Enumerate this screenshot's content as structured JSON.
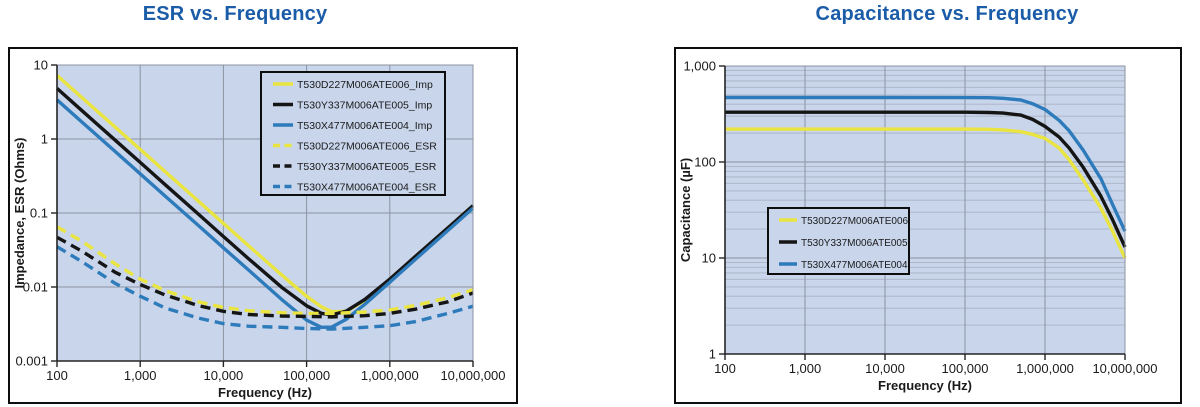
{
  "colors": {
    "title": "#1b5ca8",
    "text": "#1a1a1a",
    "plot_bg": "#c8d5eb",
    "grid_major": "#8c93a1",
    "grid_minor": "#aab3c4",
    "axis": "#252525",
    "panel_border": "#0d0d0d",
    "yellow": "#e9e440",
    "black": "#151515",
    "blue": "#2e7bbc"
  },
  "chart_data": [
    {
      "type": "line",
      "title": "ESR vs. Frequency",
      "xlabel": "Frequency (Hz)",
      "ylabel": "Impedance, ESR (Ohms)",
      "xscale": "log",
      "yscale": "log",
      "xlim": [
        100,
        10000000
      ],
      "ylim": [
        0.001,
        10
      ],
      "x_ticks": [
        100,
        1000,
        10000,
        100000,
        1000000,
        10000000
      ],
      "x_tick_labels": [
        "100",
        "1,000",
        "10,000",
        "100,000",
        "1,000,000",
        "10,000,000"
      ],
      "y_ticks": [
        10,
        1,
        0.1,
        0.01,
        0.001
      ],
      "y_tick_labels": [
        "10",
        "1",
        "0.1",
        "0.01",
        "0.001"
      ],
      "minor_horizontal_gridlines": false,
      "legend_position": "top-right",
      "series": [
        {
          "name": "T530D227M006ATE006_Imp",
          "color": "#e9e440",
          "style": "solid",
          "points": [
            [
              100,
              7.23
            ],
            [
              200,
              3.62
            ],
            [
              500,
              1.447
            ],
            [
              1000,
              0.723
            ],
            [
              2000,
              0.362
            ],
            [
              5000,
              0.1447
            ],
            [
              10000,
              0.0723
            ],
            [
              20000,
              0.0363
            ],
            [
              50000,
              0.01455
            ],
            [
              100000,
              0.00748
            ],
            [
              150000,
              0.0054
            ],
            [
              200000,
              0.00463
            ],
            [
              300000,
              0.0047
            ],
            [
              500000,
              0.0066
            ],
            [
              1000000,
              0.01267
            ],
            [
              2000000,
              0.02518
            ],
            [
              5000000,
              0.06285
            ],
            [
              10000000,
              0.1257
            ]
          ]
        },
        {
          "name": "T530Y337M006ATE005_Imp",
          "color": "#151515",
          "style": "solid",
          "points": [
            [
              100,
              4.823
            ],
            [
              200,
              2.412
            ],
            [
              500,
              0.9646
            ],
            [
              1000,
              0.4823
            ],
            [
              2000,
              0.2412
            ],
            [
              5000,
              0.0965
            ],
            [
              10000,
              0.0482
            ],
            [
              20000,
              0.0242
            ],
            [
              50000,
              0.00995
            ],
            [
              100000,
              0.00557
            ],
            [
              150000,
              0.00441
            ],
            [
              200000,
              0.0042
            ],
            [
              300000,
              0.00472
            ],
            [
              500000,
              0.00678
            ],
            [
              1000000,
              0.0128
            ],
            [
              2000000,
              0.02548
            ],
            [
              5000000,
              0.063
            ],
            [
              10000000,
              0.1257
            ]
          ]
        },
        {
          "name": "T530X477M006ATE004_Imp",
          "color": "#2e7bbc",
          "style": "solid",
          "points": [
            [
              100,
              3.386
            ],
            [
              200,
              1.693
            ],
            [
              500,
              0.6773
            ],
            [
              1000,
              0.3386
            ],
            [
              2000,
              0.1693
            ],
            [
              5000,
              0.0677
            ],
            [
              10000,
              0.0339
            ],
            [
              20000,
              0.017
            ],
            [
              50000,
              0.00679
            ],
            [
              100000,
              0.00357
            ],
            [
              150000,
              0.00285
            ],
            [
              200000,
              0.00287
            ],
            [
              300000,
              0.00367
            ],
            [
              500000,
              0.00584
            ],
            [
              1000000,
              0.01162
            ],
            [
              2000000,
              0.02327
            ],
            [
              5000000,
              0.0582
            ],
            [
              10000000,
              0.1163
            ]
          ]
        },
        {
          "name": "T530D227M006ATE006_ESR",
          "color": "#e9e440",
          "style": "dashed",
          "points": [
            [
              100,
              0.065
            ],
            [
              200,
              0.0415
            ],
            [
              500,
              0.0205
            ],
            [
              1000,
              0.0128
            ],
            [
              2000,
              0.0089
            ],
            [
              5000,
              0.0063
            ],
            [
              10000,
              0.0053
            ],
            [
              20000,
              0.00478
            ],
            [
              50000,
              0.0045
            ],
            [
              100000,
              0.0044
            ],
            [
              200000,
              0.0044
            ],
            [
              500000,
              0.0046
            ],
            [
              1000000,
              0.0049
            ],
            [
              2000000,
              0.0056
            ],
            [
              5000000,
              0.0072
            ],
            [
              10000000,
              0.0092
            ]
          ]
        },
        {
          "name": "T530Y337M006ATE005_ESR",
          "color": "#151515",
          "style": "dashed",
          "points": [
            [
              100,
              0.047
            ],
            [
              200,
              0.0305
            ],
            [
              500,
              0.0158
            ],
            [
              1000,
              0.0108
            ],
            [
              2000,
              0.0078
            ],
            [
              5000,
              0.0056
            ],
            [
              10000,
              0.0047
            ],
            [
              20000,
              0.00425
            ],
            [
              50000,
              0.00405
            ],
            [
              100000,
              0.004
            ],
            [
              200000,
              0.00395
            ],
            [
              500000,
              0.0041
            ],
            [
              1000000,
              0.0044
            ],
            [
              2000000,
              0.005
            ],
            [
              5000000,
              0.0063
            ],
            [
              10000000,
              0.0083
            ]
          ]
        },
        {
          "name": "T530X477M006ATE004_ESR",
          "color": "#2e7bbc",
          "style": "dashed",
          "points": [
            [
              100,
              0.035
            ],
            [
              200,
              0.022
            ],
            [
              500,
              0.0112
            ],
            [
              1000,
              0.0075
            ],
            [
              2000,
              0.0052
            ],
            [
              5000,
              0.0038
            ],
            [
              10000,
              0.0032
            ],
            [
              20000,
              0.00295
            ],
            [
              50000,
              0.00285
            ],
            [
              100000,
              0.00275
            ],
            [
              200000,
              0.0027
            ],
            [
              500000,
              0.00285
            ],
            [
              1000000,
              0.003
            ],
            [
              2000000,
              0.0034
            ],
            [
              5000000,
              0.0044
            ],
            [
              10000000,
              0.0055
            ]
          ]
        }
      ]
    },
    {
      "type": "line",
      "title": "Capacitance vs. Frequency",
      "xlabel": "Frequency (Hz)",
      "ylabel": "Capacitance (µF)",
      "xscale": "log",
      "yscale": "log",
      "xlim": [
        100,
        10000000
      ],
      "ylim": [
        1,
        1000
      ],
      "x_ticks": [
        100,
        1000,
        10000,
        100000,
        1000000,
        10000000
      ],
      "x_tick_labels": [
        "100",
        "1,000",
        "10,000",
        "100,000",
        "1,000,000",
        "10,000,000"
      ],
      "y_ticks": [
        1000,
        100,
        10,
        1
      ],
      "y_tick_labels": [
        "1,000",
        "100",
        "10",
        "1"
      ],
      "minor_horizontal_gridlines": true,
      "legend_position": "middle-left",
      "series": [
        {
          "name": "T530D227M006ATE006",
          "color": "#e9e440",
          "style": "solid",
          "points": [
            [
              100,
              220
            ],
            [
              1000,
              220
            ],
            [
              10000,
              220
            ],
            [
              100000,
              220
            ],
            [
              200000,
              219
            ],
            [
              300000,
              216
            ],
            [
              500000,
              207
            ],
            [
              700000,
              194
            ],
            [
              1000000,
              176
            ],
            [
              1500000,
              140
            ],
            [
              2000000,
              106
            ],
            [
              3000000,
              65
            ],
            [
              5000000,
              33
            ],
            [
              7000000,
              19
            ],
            [
              10000000,
              10
            ]
          ]
        },
        {
          "name": "T530Y337M006ATE005",
          "color": "#151515",
          "style": "solid",
          "points": [
            [
              100,
              330
            ],
            [
              1000,
              330
            ],
            [
              10000,
              330
            ],
            [
              100000,
              330
            ],
            [
              200000,
              328
            ],
            [
              300000,
              323
            ],
            [
              500000,
              308
            ],
            [
              700000,
              278
            ],
            [
              1000000,
              235
            ],
            [
              1500000,
              182
            ],
            [
              2000000,
              140
            ],
            [
              3000000,
              88
            ],
            [
              5000000,
              44
            ],
            [
              7000000,
              25
            ],
            [
              10000000,
              13
            ]
          ]
        },
        {
          "name": "T530X477M006ATE004",
          "color": "#2e7bbc",
          "style": "solid",
          "points": [
            [
              100,
              470
            ],
            [
              1000,
              470
            ],
            [
              10000,
              470
            ],
            [
              100000,
              469
            ],
            [
              200000,
              467
            ],
            [
              300000,
              461
            ],
            [
              500000,
              442
            ],
            [
              700000,
              405
            ],
            [
              1000000,
              352
            ],
            [
              1500000,
              272
            ],
            [
              2000000,
              212
            ],
            [
              3000000,
              133
            ],
            [
              5000000,
              67
            ],
            [
              7000000,
              36
            ],
            [
              10000000,
              19
            ]
          ]
        }
      ]
    }
  ]
}
